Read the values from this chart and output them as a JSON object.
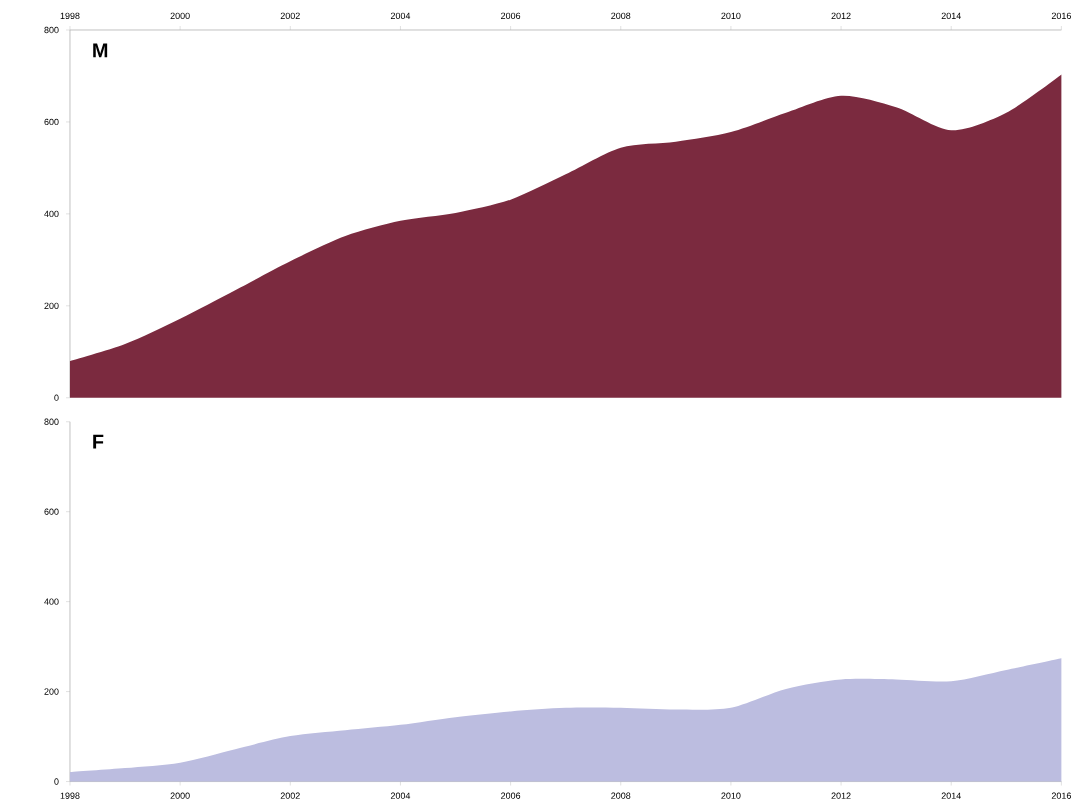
{
  "chart_data": [
    {
      "type": "area",
      "title": "M",
      "x": [
        1998,
        1999,
        2000,
        2001,
        2002,
        2003,
        2004,
        2005,
        2006,
        2007,
        2008,
        2009,
        2010,
        2011,
        2012,
        2013,
        2014,
        2015,
        2016
      ],
      "series": [
        {
          "color": "#7b2a3f",
          "values": [
            80,
            117,
            172,
            234,
            297,
            352,
            385,
            402,
            431,
            486,
            544,
            557,
            578,
            620,
            657,
            632,
            582,
            620,
            703
          ]
        }
      ],
      "xlim": [
        1998,
        2016
      ],
      "ylim": [
        0,
        800
      ],
      "xticks": [
        1998,
        2000,
        2002,
        2004,
        2006,
        2008,
        2010,
        2012,
        2014,
        2016
      ],
      "yticks": [
        0,
        200,
        400,
        600,
        800
      ],
      "grid": false
    },
    {
      "type": "area",
      "title": "F",
      "x": [
        1998,
        1999,
        2000,
        2001,
        2002,
        2003,
        2004,
        2005,
        2006,
        2007,
        2008,
        2009,
        2010,
        2011,
        2012,
        2013,
        2014,
        2015,
        2016
      ],
      "series": [
        {
          "color": "#bcbde0",
          "values": [
            21,
            30,
            42,
            72,
            101,
            114,
            126,
            143,
            156,
            164,
            164,
            160,
            164,
            206,
            227,
            227,
            223,
            248,
            274
          ]
        }
      ],
      "xlim": [
        1998,
        2016
      ],
      "ylim": [
        0,
        800
      ],
      "xticks": [
        1998,
        2000,
        2002,
        2004,
        2006,
        2008,
        2010,
        2012,
        2014,
        2016
      ],
      "yticks": [
        0,
        200,
        400,
        600,
        800
      ],
      "grid": false
    }
  ]
}
